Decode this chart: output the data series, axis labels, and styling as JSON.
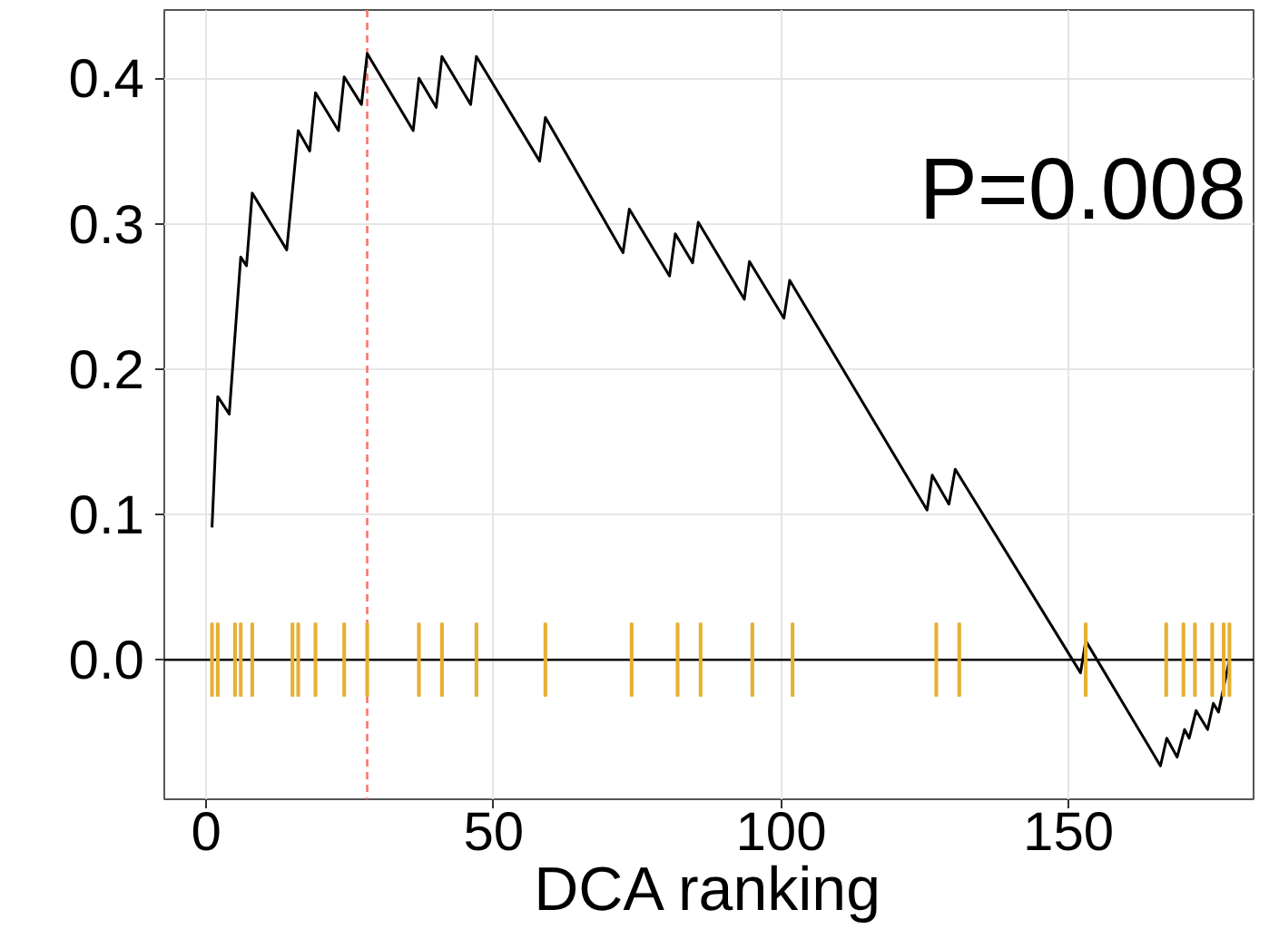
{
  "chart_data": {
    "type": "line",
    "xlabel": "DCA ranking",
    "xlim": [
      -7.3,
      182.2
    ],
    "ylim": [
      -0.096,
      0.447
    ],
    "xticks": [
      0,
      50,
      100,
      150
    ],
    "yticks": [
      {
        "value": 0,
        "label": "0.0"
      },
      {
        "value": 0.1,
        "label": "0.1"
      },
      {
        "value": 0.2,
        "label": "0.2"
      },
      {
        "value": 0.3,
        "label": "0.3"
      },
      {
        "value": 0.4,
        "label": "0.4"
      }
    ],
    "grid": true,
    "annotations": [
      "P=0.008"
    ],
    "ref_lines": [
      {
        "axis": "x",
        "value": 28,
        "color": "#f8766d",
        "line_style": "dashed"
      },
      {
        "axis": "y",
        "value": 0,
        "color": "#000000",
        "line_style": "solid"
      }
    ],
    "series": [
      {
        "color": "#000000",
        "x": [
          1,
          2,
          4,
          6,
          7,
          8,
          14,
          16,
          18,
          19,
          23,
          24,
          27,
          28,
          36,
          37,
          40,
          41,
          46,
          47,
          58,
          59,
          72.5,
          73.6,
          80.6,
          81.6,
          84.6,
          85.6,
          93.6,
          94.5,
          100.5,
          101.5,
          125.4,
          126.3,
          129.2,
          130.3,
          152.1,
          153,
          166,
          167.1,
          168.9,
          170.2,
          171,
          172.2,
          174.2,
          175.2,
          176.1,
          178
        ],
        "values": [
          0.091,
          0.181,
          0.169,
          0.277,
          0.271,
          0.321,
          0.282,
          0.364,
          0.35,
          0.39,
          0.364,
          0.401,
          0.382,
          0.417,
          0.364,
          0.4,
          0.38,
          0.415,
          0.382,
          0.415,
          0.343,
          0.373,
          0.28,
          0.31,
          0.264,
          0.293,
          0.273,
          0.301,
          0.248,
          0.274,
          0.235,
          0.261,
          0.103,
          0.127,
          0.107,
          0.131,
          -0.009,
          0.013,
          -0.073,
          -0.054,
          -0.067,
          -0.048,
          -0.054,
          -0.035,
          -0.048,
          -0.03,
          -0.036,
          0.0
        ]
      },
      {
        "type": "bar",
        "color": "#e6b035",
        "x": [
          1,
          2,
          5,
          6,
          8,
          15,
          16,
          19,
          24,
          28,
          37,
          41,
          47,
          59,
          74,
          82,
          86,
          95,
          102,
          127,
          131,
          153,
          167,
          170,
          172,
          175,
          177,
          178
        ],
        "base": [
          -0.025,
          -0.025,
          -0.025,
          -0.025,
          -0.025,
          -0.025,
          -0.025,
          -0.025,
          -0.025,
          -0.025,
          -0.025,
          -0.025,
          -0.025,
          -0.025,
          -0.025,
          -0.025,
          -0.025,
          -0.025,
          -0.025,
          -0.025,
          -0.025,
          -0.025,
          -0.025,
          -0.025,
          -0.025,
          -0.025,
          -0.025,
          -0.025
        ],
        "values": [
          0.05,
          0.05,
          0.05,
          0.05,
          0.05,
          0.05,
          0.05,
          0.05,
          0.05,
          0.05,
          0.05,
          0.05,
          0.05,
          0.05,
          0.05,
          0.05,
          0.05,
          0.05,
          0.05,
          0.05,
          0.05,
          0.05,
          0.05,
          0.05,
          0.05,
          0.05,
          0.05,
          0.05
        ]
      }
    ]
  }
}
